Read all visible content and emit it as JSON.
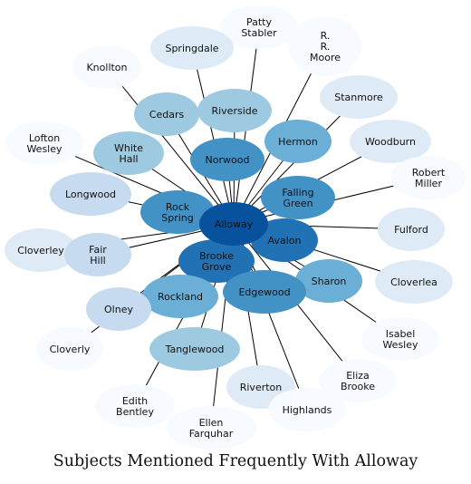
{
  "caption": "Subjects Mentioned Frequently With Alloway",
  "colors": {
    "center": "#08519c",
    "level_strong": "#2171b5",
    "level_medium": "#4292c6",
    "level_mid_light": "#6baed6",
    "level_light": "#9ecae1",
    "level_pale": "#c6dbef",
    "level_faint": "#deebf7",
    "level_faintest": "#f7fbff",
    "edge": "#000000"
  },
  "diagram": {
    "center": {
      "id": "alloway",
      "label": "Alloway"
    },
    "nodes": [
      {
        "id": "patty-stabler",
        "label": "Patty\nStabler",
        "shade": "level_faintest"
      },
      {
        "id": "springdale",
        "label": "Springdale",
        "shade": "level_faint"
      },
      {
        "id": "r-r-moore",
        "label": "R.\nR.\nMoore",
        "shade": "level_faintest"
      },
      {
        "id": "knollton",
        "label": "Knollton",
        "shade": "level_faintest"
      },
      {
        "id": "stanmore",
        "label": "Stanmore",
        "shade": "level_faint"
      },
      {
        "id": "cedars",
        "label": "Cedars",
        "shade": "level_light"
      },
      {
        "id": "riverside",
        "label": "Riverside",
        "shade": "level_light"
      },
      {
        "id": "lofton-wesley",
        "label": "Lofton\nWesley",
        "shade": "level_faintest"
      },
      {
        "id": "hermon",
        "label": "Hermon",
        "shade": "level_mid_light"
      },
      {
        "id": "woodburn",
        "label": "Woodburn",
        "shade": "level_faint"
      },
      {
        "id": "white-hall",
        "label": "White\nHall",
        "shade": "level_light"
      },
      {
        "id": "norwood",
        "label": "Norwood",
        "shade": "level_medium"
      },
      {
        "id": "robert-miller",
        "label": "Robert\nMiller",
        "shade": "level_faintest"
      },
      {
        "id": "longwood",
        "label": "Longwood",
        "shade": "level_pale"
      },
      {
        "id": "falling-green",
        "label": "Falling\nGreen",
        "shade": "level_medium"
      },
      {
        "id": "rock-spring",
        "label": "Rock\nSpring",
        "shade": "level_medium"
      },
      {
        "id": "fulford",
        "label": "Fulford",
        "shade": "level_faint"
      },
      {
        "id": "cloverley",
        "label": "Cloverley",
        "shade": "level_faint"
      },
      {
        "id": "fair-hill",
        "label": "Fair\nHill",
        "shade": "level_pale"
      },
      {
        "id": "avalon",
        "label": "Avalon",
        "shade": "level_strong"
      },
      {
        "id": "brooke-grove",
        "label": "Brooke\nGrove",
        "shade": "level_strong"
      },
      {
        "id": "cloverlea",
        "label": "Cloverlea",
        "shade": "level_faint"
      },
      {
        "id": "sharon",
        "label": "Sharon",
        "shade": "level_mid_light"
      },
      {
        "id": "edgewood",
        "label": "Edgewood",
        "shade": "level_medium"
      },
      {
        "id": "rockland",
        "label": "Rockland",
        "shade": "level_mid_light"
      },
      {
        "id": "olney",
        "label": "Olney",
        "shade": "level_pale"
      },
      {
        "id": "isabel-wesley",
        "label": "Isabel\nWesley",
        "shade": "level_faintest"
      },
      {
        "id": "cloverly",
        "label": "Cloverly",
        "shade": "level_faintest"
      },
      {
        "id": "tanglewood",
        "label": "Tanglewood",
        "shade": "level_light"
      },
      {
        "id": "eliza-brooke",
        "label": "Eliza\nBrooke",
        "shade": "level_faintest"
      },
      {
        "id": "riverton",
        "label": "Riverton",
        "shade": "level_faint"
      },
      {
        "id": "edith-bentley",
        "label": "Edith\nBentley",
        "shade": "level_faintest"
      },
      {
        "id": "highlands",
        "label": "Highlands",
        "shade": "level_faintest"
      },
      {
        "id": "ellen-farquhar",
        "label": "Ellen\nFarquhar",
        "shade": "level_faintest"
      }
    ]
  }
}
